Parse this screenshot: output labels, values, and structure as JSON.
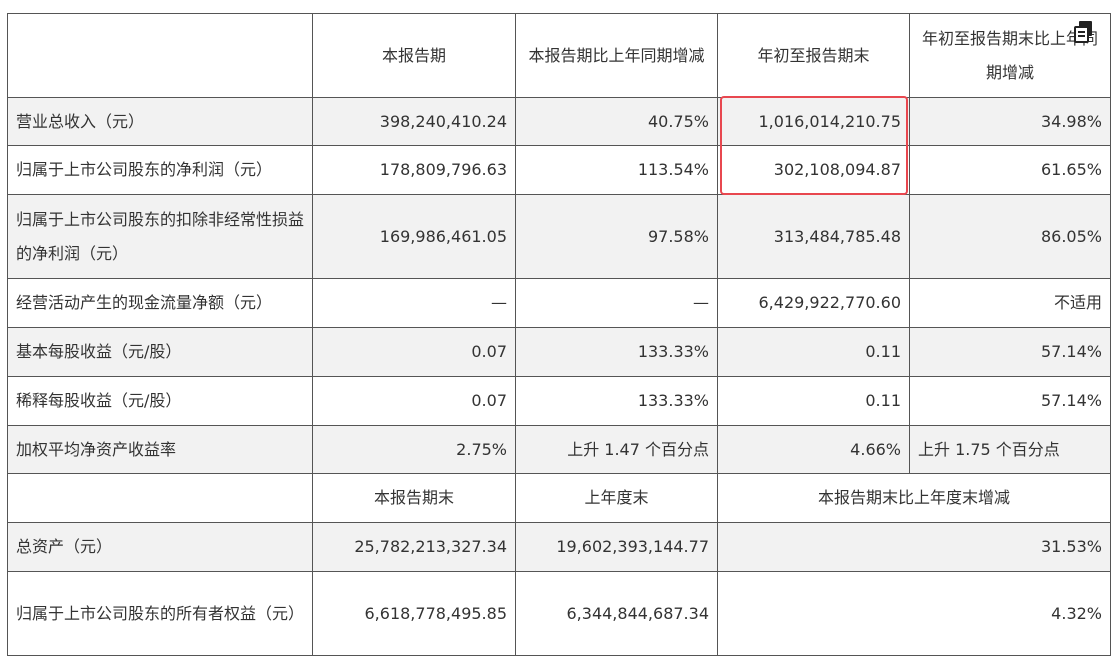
{
  "header": {
    "col1": "本报告期",
    "col2": "本报告期比上年同期增减",
    "col3": "年初至报告期末",
    "col4": "年初至报告期末比上年同期增减"
  },
  "rows": [
    {
      "label": "营业总收入（元）",
      "v1": "398,240,410.24",
      "v2": "40.75%",
      "v3": "1,016,014,210.75",
      "v4": "34.98%"
    },
    {
      "label": "归属于上市公司股东的净利润（元）",
      "v1": "178,809,796.63",
      "v2": "113.54%",
      "v3": "302,108,094.87",
      "v4": "61.65%"
    },
    {
      "label": "归属于上市公司股东的扣除非经常性损益的净利润（元）",
      "v1": "169,986,461.05",
      "v2": "97.58%",
      "v3": "313,484,785.48",
      "v4": "86.05%"
    },
    {
      "label": "经营活动产生的现金流量净额（元）",
      "v1": "—",
      "v2": "—",
      "v3": "6,429,922,770.60",
      "v4": "不适用"
    },
    {
      "label": "基本每股收益（元/股）",
      "v1": "0.07",
      "v2": "133.33%",
      "v3": "0.11",
      "v4": "57.14%"
    },
    {
      "label": "稀释每股收益（元/股）",
      "v1": "0.07",
      "v2": "133.33%",
      "v3": "0.11",
      "v4": "57.14%"
    },
    {
      "label": "加权平均净资产收益率",
      "v1": "2.75%",
      "v2": "上升 1.47 个百分点",
      "v3": "4.66%",
      "v4": "上升 1.75 个百分点"
    }
  ],
  "header2": {
    "col1": "本报告期末",
    "col2": "上年度末",
    "col3": "本报告期末比上年度末增减"
  },
  "rows2": [
    {
      "label": "总资产（元）",
      "v1": "25,782,213,327.34",
      "v2": "19,602,393,144.77",
      "v3": "31.53%"
    },
    {
      "label": "归属于上市公司股东的所有者权益（元）",
      "v1": "6,618,778,495.85",
      "v2": "6,344,844,687.34",
      "v3": "4.32%"
    }
  ],
  "icons": {
    "copy": "copy-icon"
  },
  "colors": {
    "highlight": "#e8474f",
    "shade": "#f2f2f2",
    "border": "#555555"
  }
}
